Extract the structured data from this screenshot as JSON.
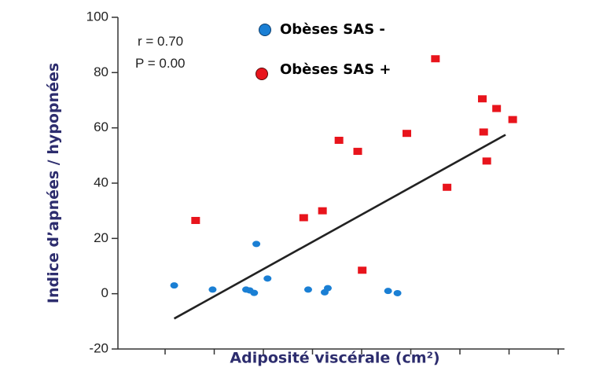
{
  "chart_data": {
    "type": "scatter",
    "xlabel": "Adiposité viscérale (cm²)",
    "ylabel": "Indice d’apnées / hypopnées",
    "ylim": [
      -20,
      100
    ],
    "yticks": [
      -20,
      0,
      20,
      40,
      60,
      80,
      100
    ],
    "xlim": [
      0,
      100
    ],
    "stats": {
      "r": "r = 0.70",
      "p": "P = 0.00"
    },
    "legend_position": "top",
    "series": [
      {
        "name": "Obèses SAS -",
        "color": "#1a7fd4",
        "marker": "circle",
        "points": [
          {
            "x": 12.6,
            "y": 3
          },
          {
            "x": 21.2,
            "y": 1.5
          },
          {
            "x": 28.7,
            "y": 1.5
          },
          {
            "x": 29.5,
            "y": 1.2
          },
          {
            "x": 30.5,
            "y": 0.3
          },
          {
            "x": 31,
            "y": 18
          },
          {
            "x": 33.5,
            "y": 5.5
          },
          {
            "x": 42.6,
            "y": 1.5
          },
          {
            "x": 46.3,
            "y": 0.5
          },
          {
            "x": 47,
            "y": 2
          },
          {
            "x": 60.5,
            "y": 1
          },
          {
            "x": 62.6,
            "y": 0.2
          }
        ]
      },
      {
        "name": "Obèses SAS +",
        "color": "#e8141c",
        "marker": "square",
        "points": [
          {
            "x": 17.4,
            "y": 26.5
          },
          {
            "x": 41.6,
            "y": 27.5
          },
          {
            "x": 45.8,
            "y": 30
          },
          {
            "x": 49.5,
            "y": 55.5
          },
          {
            "x": 53.7,
            "y": 51.5
          },
          {
            "x": 54.7,
            "y": 8.5
          },
          {
            "x": 64.7,
            "y": 58
          },
          {
            "x": 71.1,
            "y": 85
          },
          {
            "x": 73.7,
            "y": 38.5
          },
          {
            "x": 81.6,
            "y": 70.5
          },
          {
            "x": 81.9,
            "y": 58.5
          },
          {
            "x": 82.6,
            "y": 48
          },
          {
            "x": 84.8,
            "y": 67
          },
          {
            "x": 88.4,
            "y": 63
          }
        ]
      }
    ],
    "trendline": {
      "x": [
        12.6,
        86.8
      ],
      "y": [
        -9,
        57.5
      ],
      "color": "#222222"
    }
  }
}
